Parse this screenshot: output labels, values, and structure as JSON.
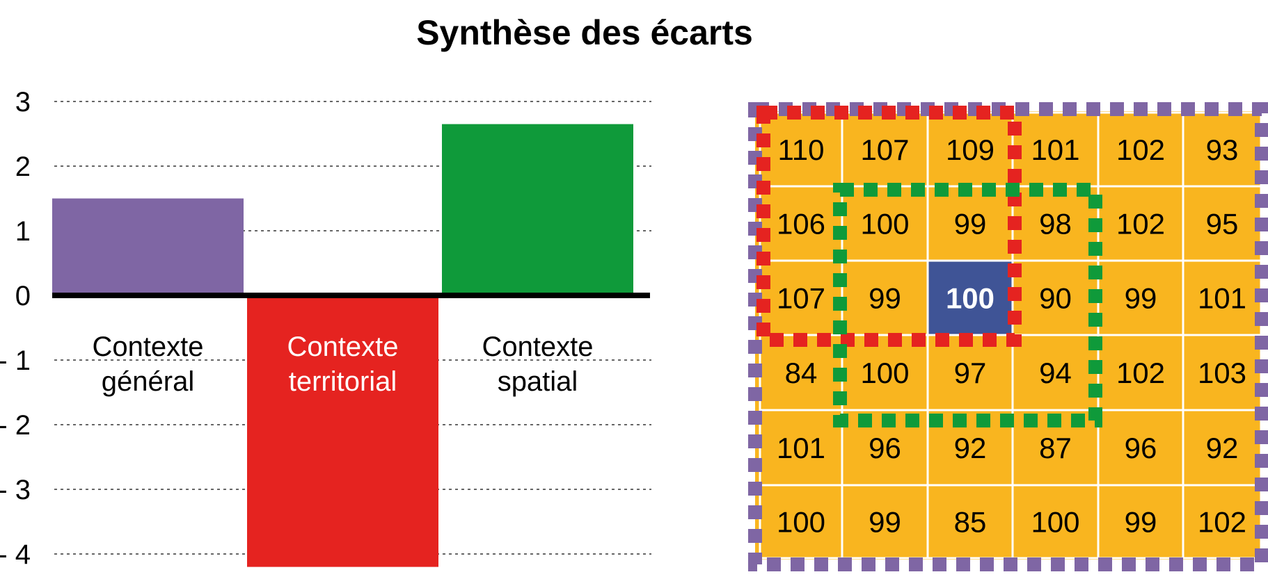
{
  "title": "Synthèse des écarts",
  "colors": {
    "general": "#7f66a4",
    "territorial": "#e52320",
    "spatial": "#0f9a3a",
    "cell": "#f9b51f",
    "center_cell": "#3f5496",
    "axis": "#000000",
    "grid": "#333333"
  },
  "chart_data": [
    {
      "type": "bar",
      "categories": [
        "Contexte général",
        "Contexte territorial",
        "Contexte spatial"
      ],
      "category_lines": [
        [
          "Contexte",
          "général"
        ],
        [
          "Contexte",
          "territorial"
        ],
        [
          "Contexte",
          "spatial"
        ]
      ],
      "values": [
        1.5,
        -4.2,
        2.65
      ],
      "ylim": [
        -4,
        3
      ],
      "yticks": [
        "3",
        "2",
        "1",
        "0",
        "- 1",
        "- 2",
        "- 3",
        "- 4"
      ],
      "ytick_values": [
        3,
        2,
        1,
        0,
        -1,
        -2,
        -3,
        -4
      ],
      "grid": true,
      "grid_style": "dotted"
    },
    {
      "type": "table",
      "rows": [
        [
          "110",
          "107",
          "109",
          "101",
          "102",
          "93"
        ],
        [
          "106",
          "100",
          "99",
          "98",
          "102",
          "95"
        ],
        [
          "107",
          "99",
          "100",
          "90",
          "99",
          "101"
        ],
        [
          "84",
          "100",
          "97",
          "94",
          "102",
          "103"
        ],
        [
          "101",
          "96",
          "92",
          "87",
          "96",
          "92"
        ],
        [
          "100",
          "99",
          "85",
          "100",
          "99",
          "102"
        ]
      ],
      "highlight_cell": [
        2,
        2
      ],
      "zones": [
        {
          "color": "purple",
          "rows": [
            0,
            5
          ],
          "cols": [
            0,
            5
          ]
        },
        {
          "color": "red",
          "rows": [
            0,
            2
          ],
          "cols": [
            0,
            2
          ]
        },
        {
          "color": "green",
          "rows": [
            1,
            3
          ],
          "cols": [
            1,
            3
          ]
        }
      ]
    }
  ]
}
